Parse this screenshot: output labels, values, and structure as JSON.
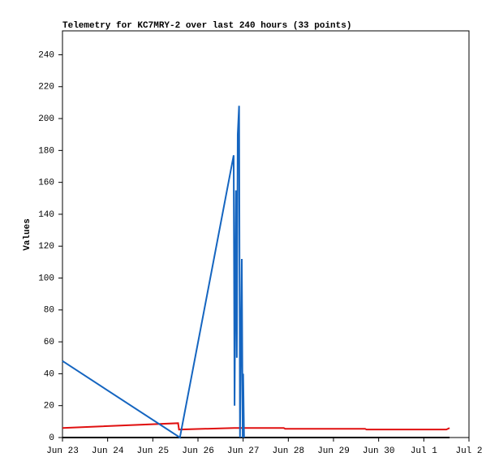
{
  "chart_data": {
    "type": "line",
    "title": "Telemetry for KC7MRY-2 over last 240 hours (33 points)",
    "y_label": "Values",
    "xlim": [
      0,
      9
    ],
    "xticks": [
      {
        "value": 0,
        "label": "Jun 23"
      },
      {
        "value": 1,
        "label": "Jun 24"
      },
      {
        "value": 2,
        "label": "Jun 25"
      },
      {
        "value": 3,
        "label": "Jun 26"
      },
      {
        "value": 4,
        "label": "Jun 27"
      },
      {
        "value": 5,
        "label": "Jun 28"
      },
      {
        "value": 6,
        "label": "Jun 29"
      },
      {
        "value": 7,
        "label": "Jun 30"
      },
      {
        "value": 8,
        "label": "Jul 1"
      },
      {
        "value": 9,
        "label": "Jul 2"
      }
    ],
    "ylim": [
      0,
      255
    ],
    "yticks": [
      0,
      20,
      40,
      60,
      80,
      100,
      120,
      140,
      160,
      180,
      200,
      220,
      240
    ],
    "series": [
      {
        "color": "#1565c0",
        "x": [
          0,
          2.6,
          3.79,
          3.81,
          3.84,
          3.86,
          3.88,
          3.91,
          3.93,
          3.97,
          3.99,
          4.0,
          4.02
        ],
        "values": [
          48,
          0,
          177,
          20,
          155,
          50,
          190,
          208,
          0,
          112,
          0,
          40,
          0
        ]
      },
      {
        "color": "#e01010",
        "x": [
          0,
          2.56,
          2.58,
          3.8,
          4.9,
          4.93,
          6.7,
          6.73,
          8.5,
          8.57
        ],
        "values": [
          6,
          9,
          5,
          6,
          6,
          5.5,
          5.5,
          5,
          5,
          6
        ]
      },
      {
        "color": "#000000",
        "x": [
          0,
          8.57
        ],
        "values": [
          0,
          0
        ]
      }
    ]
  }
}
